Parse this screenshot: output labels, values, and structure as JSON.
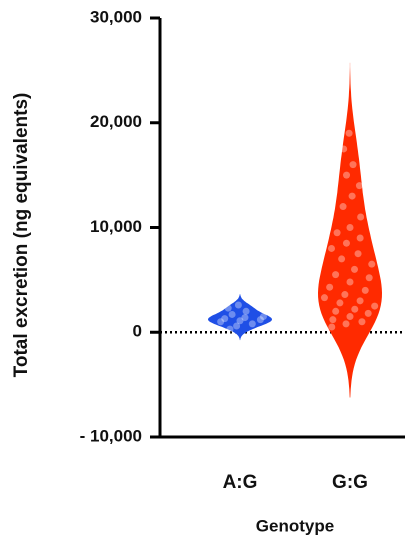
{
  "chart_data": {
    "type": "violin",
    "y_label": "Total excretion (ng equivalents)",
    "x_label": "Genotype",
    "categories": [
      "A:G",
      "G:G"
    ],
    "series": [
      {
        "name": "A:G",
        "color": "#1f4fe6",
        "values": [
          300,
          600,
          800,
          1000,
          1100,
          1200,
          1300,
          1400,
          1500,
          1700,
          2000,
          2300,
          2600
        ]
      },
      {
        "name": "G:G",
        "color": "#ff2a00",
        "values": [
          500,
          800,
          1000,
          1200,
          1500,
          1800,
          2000,
          2200,
          2500,
          2800,
          3000,
          3300,
          3600,
          4000,
          4300,
          4800,
          5200,
          5500,
          6000,
          6500,
          7000,
          7500,
          8000,
          8500,
          9000,
          9500,
          10000,
          11000,
          12000,
          13000,
          14000,
          15000,
          16000,
          17500,
          19000
        ]
      }
    ],
    "ylim": [
      -10000,
      30000
    ],
    "yticks": [
      {
        "value": -10000,
        "label": "- 10,000"
      },
      0,
      {
        "value": 10000,
        "label": "10,000"
      },
      {
        "value": 20000,
        "label": "20,000"
      },
      {
        "value": 30000,
        "label": "30,000"
      }
    ],
    "zero_line": true
  }
}
